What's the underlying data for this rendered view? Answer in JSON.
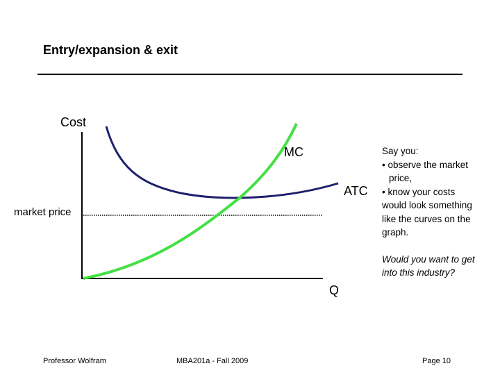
{
  "slide": {
    "title": "Entry/expansion & exit",
    "say_you": [
      "Say you:",
      "• observe the market",
      "price,",
      "• know your costs",
      "would look something",
      "like the curves on the",
      "graph."
    ],
    "question": [
      "Would you want to get",
      "into this industry?"
    ]
  },
  "graph": {
    "y_axis_label": "Cost",
    "x_axis_label": "Q",
    "mc_label": "MC",
    "atc_label": "ATC",
    "market_price_label": "market price",
    "colors": {
      "mc": "#44e044",
      "atc": "#1f1f6e",
      "axis": "#000000",
      "price_line": "#000000"
    }
  },
  "footer": {
    "left": "Professor Wolfram",
    "center": "MBA201a - Fall 2009",
    "right": "Page 10"
  }
}
